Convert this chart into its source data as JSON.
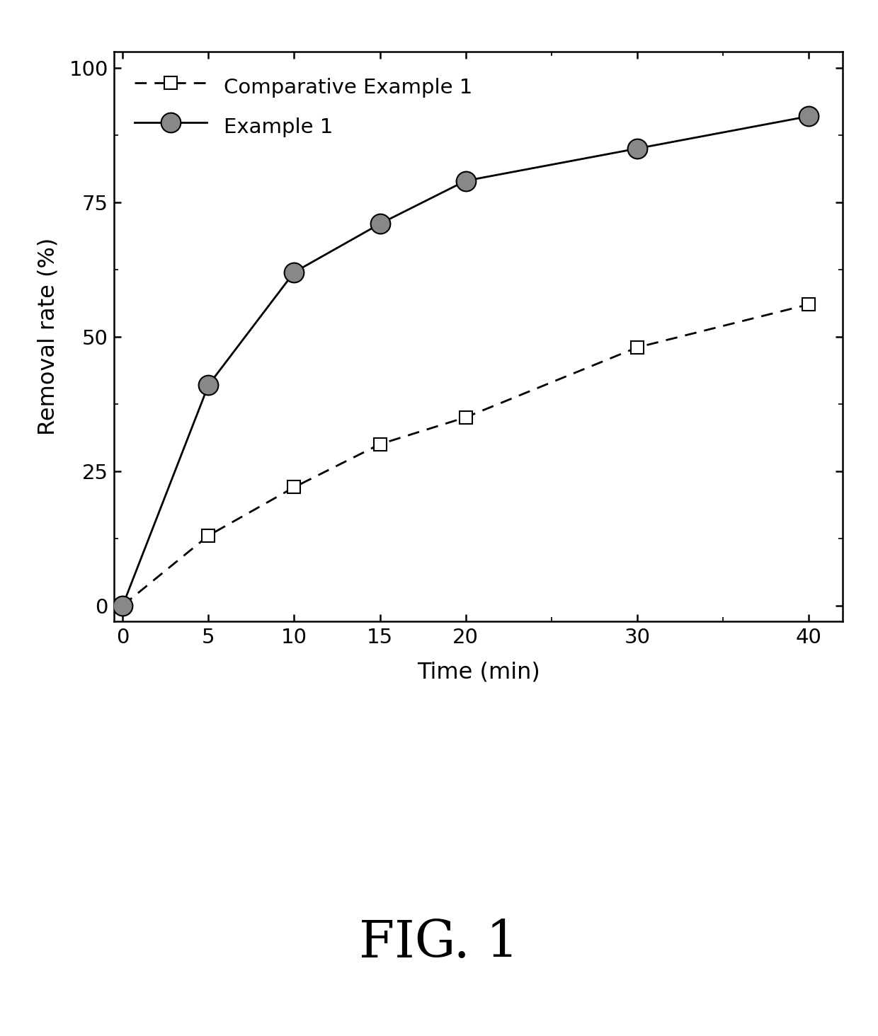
{
  "comparative_x": [
    0,
    5,
    10,
    15,
    20,
    30,
    40
  ],
  "comparative_y": [
    0,
    13,
    22,
    30,
    35,
    48,
    56
  ],
  "example_x": [
    0,
    5,
    10,
    15,
    20,
    30,
    40
  ],
  "example_y": [
    0,
    41,
    62,
    71,
    79,
    85,
    91
  ],
  "xlabel": "Time (min)",
  "ylabel": "Removal rate (%)",
  "fig_label": "FIG. 1",
  "xlim": [
    -0.5,
    42
  ],
  "ylim": [
    -3,
    103
  ],
  "xticks": [
    0,
    5,
    10,
    15,
    20,
    30,
    40
  ],
  "yticks": [
    0,
    25,
    50,
    75,
    100
  ],
  "comparative_label": "Comparative Example 1",
  "example_label": "Example 1",
  "background_color": "#ffffff",
  "line_color": "#000000",
  "marker_gray": "#888888"
}
